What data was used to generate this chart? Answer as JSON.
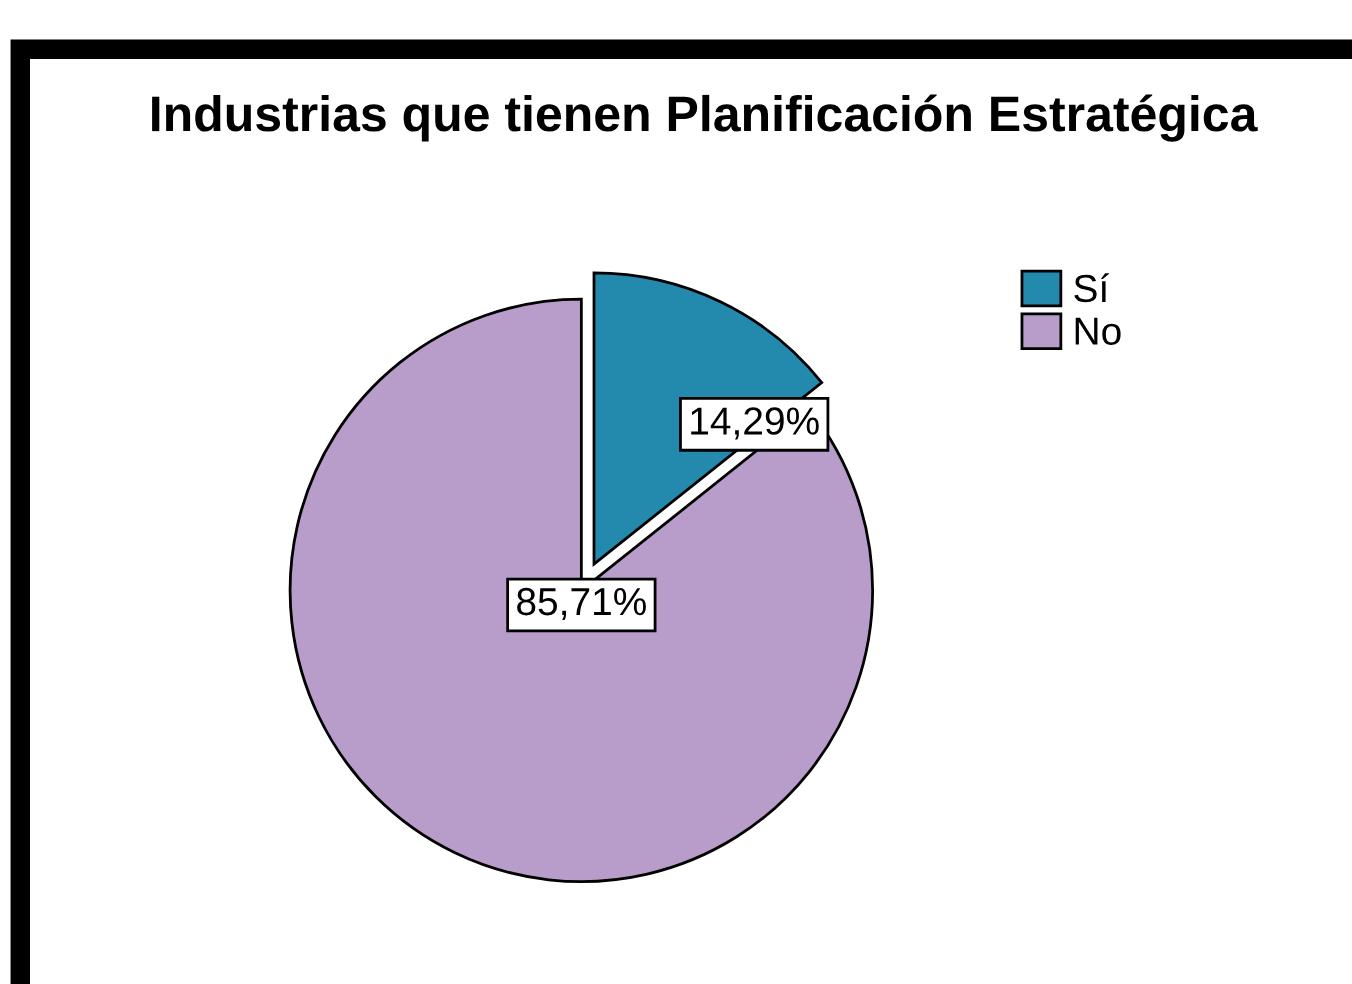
{
  "chart_data": {
    "type": "pie",
    "title": "Industrias que tienen Planificación Estratégica",
    "categories": [
      "Sí",
      "No"
    ],
    "values": [
      14.29,
      85.71
    ],
    "colors": [
      "#2389ad",
      "#b89cca"
    ],
    "value_labels": [
      "14,29%",
      "85,71%"
    ],
    "legend": "top right"
  }
}
